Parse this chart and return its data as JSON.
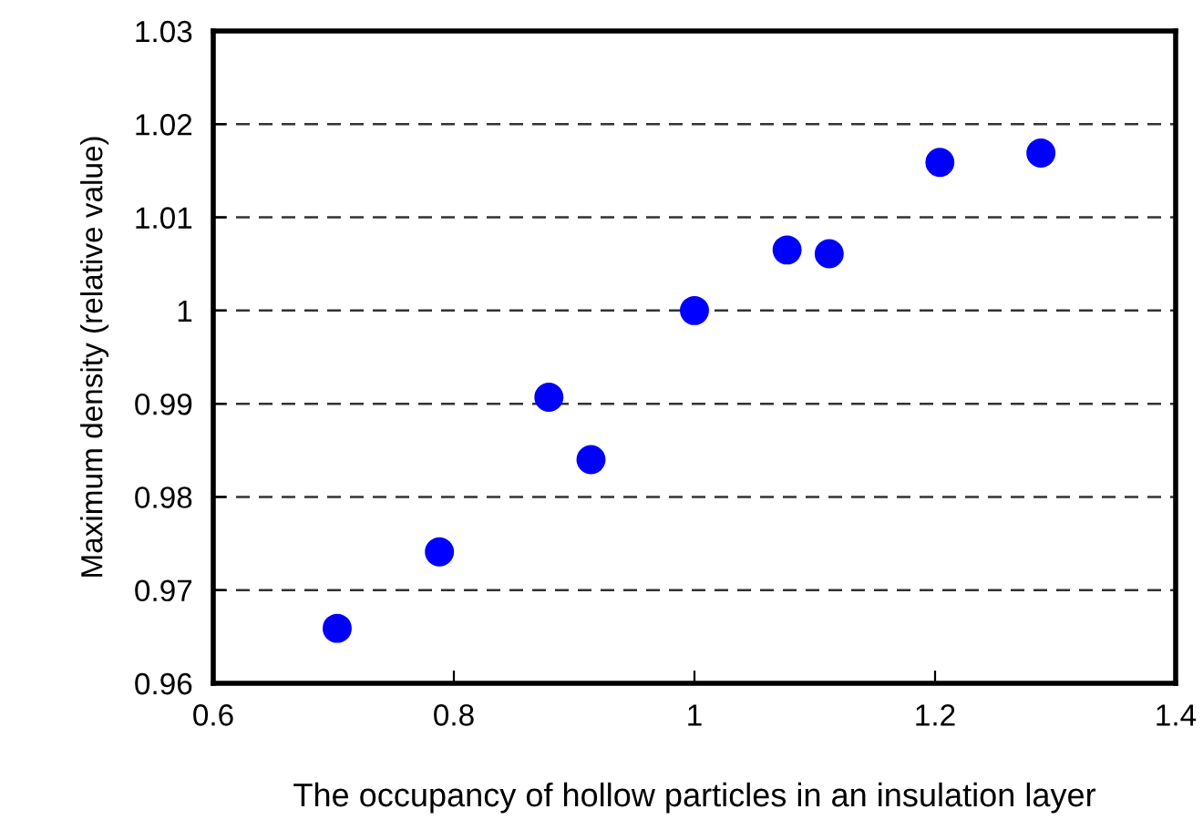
{
  "chart_data": {
    "type": "scatter",
    "xlabel": "The occupancy of hollow particles in an insulation layer",
    "ylabel": "Maximum density (relative value)",
    "x": [
      0.703,
      0.788,
      0.879,
      0.914,
      1.0,
      1.077,
      1.112,
      1.204,
      1.288
    ],
    "series": [
      {
        "color": "#0000ff",
        "values": [
          0.9659,
          0.9741,
          0.9907,
          0.984,
          1.0,
          1.0065,
          1.0061,
          1.0159,
          1.0169
        ]
      }
    ],
    "xlim": [
      0.6,
      1.4
    ],
    "xticks": [
      0.6,
      0.8,
      1,
      1.2,
      1.4
    ],
    "ylim": [
      0.96,
      1.03
    ],
    "yticks": [
      0.96,
      0.97,
      0.98,
      0.99,
      1,
      1.01,
      1.02,
      1.03
    ],
    "grid": "y",
    "marker": "circle",
    "legend": false
  }
}
